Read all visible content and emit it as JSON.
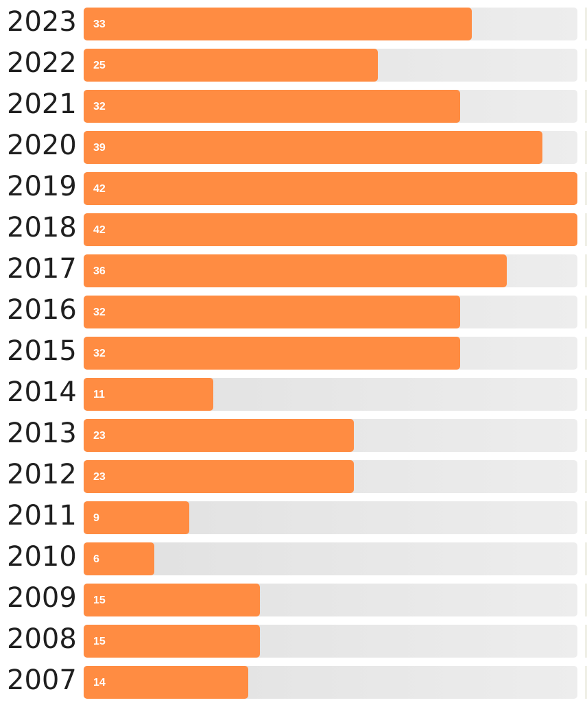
{
  "chart_data": {
    "type": "bar",
    "orientation": "horizontal",
    "categories": [
      "2023",
      "2022",
      "2021",
      "2020",
      "2019",
      "2018",
      "2017",
      "2016",
      "2015",
      "2014",
      "2013",
      "2012",
      "2011",
      "2010",
      "2009",
      "2008",
      "2007"
    ],
    "values": [
      33,
      25,
      32,
      39,
      42,
      42,
      36,
      32,
      32,
      11,
      23,
      23,
      9,
      6,
      15,
      15,
      14
    ],
    "xlim": [
      0,
      42
    ],
    "grid": false,
    "legend": "none",
    "colors": {
      "bar": "#ff8c42",
      "track": "#e6e6e6",
      "label": "#1f1f1f",
      "value_text": "#ffffff"
    }
  }
}
